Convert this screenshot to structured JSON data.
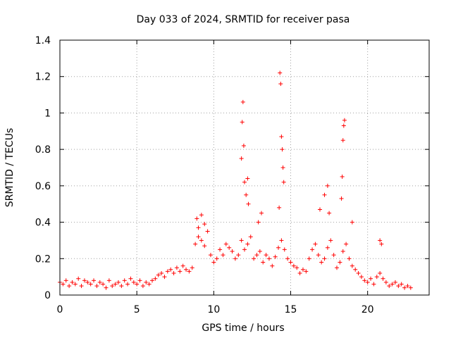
{
  "chart_data": {
    "type": "scatter",
    "title": "Day 033 of 2024, SRMTID for receiver pasa",
    "xlabel": "GPS time / hours",
    "ylabel": "SRMTID / TECUs",
    "xlim": [
      0,
      24
    ],
    "ylim": [
      0,
      1.4
    ],
    "x_ticks": [
      0,
      5,
      10,
      15,
      20
    ],
    "x_tick_labels": [
      "0",
      "5",
      "10",
      "15",
      "20"
    ],
    "y_ticks": [
      0,
      0.2,
      0.4,
      0.6,
      0.8,
      1.0,
      1.2,
      1.4
    ],
    "y_tick_labels": [
      "0",
      "0.2",
      "0.4",
      "0.6",
      "0.8",
      "1",
      "1.2",
      "1.4"
    ],
    "grid": true,
    "marker": "plus",
    "color": "#ff0000",
    "series": [
      {
        "name": "SRMTID",
        "x": [
          0.0,
          0.2,
          0.4,
          0.6,
          0.8,
          1.0,
          1.2,
          1.4,
          1.6,
          1.8,
          2.0,
          2.2,
          2.4,
          2.6,
          2.8,
          3.0,
          3.2,
          3.4,
          3.6,
          3.8,
          4.0,
          4.2,
          4.4,
          4.6,
          4.8,
          5.0,
          5.2,
          5.4,
          5.6,
          5.8,
          6.0,
          6.2,
          6.4,
          6.6,
          6.8,
          7.0,
          7.2,
          7.4,
          7.6,
          7.8,
          8.0,
          8.2,
          8.4,
          8.6,
          8.8,
          9.0,
          9.2,
          9.4,
          9.6,
          9.8,
          10.0,
          10.2,
          10.4,
          10.6,
          10.8,
          11.0,
          11.2,
          11.4,
          11.6,
          11.8,
          12.0,
          12.2,
          12.4,
          12.6,
          12.8,
          13.0,
          13.2,
          13.4,
          13.6,
          13.8,
          14.0,
          14.2,
          14.4,
          14.6,
          14.8,
          15.0,
          15.2,
          15.4,
          15.6,
          15.8,
          16.0,
          16.2,
          16.4,
          16.6,
          16.8,
          17.0,
          17.2,
          17.4,
          17.6,
          17.8,
          18.0,
          18.2,
          18.4,
          18.6,
          18.8,
          19.0,
          19.2,
          19.4,
          19.6,
          19.8,
          20.0,
          20.2,
          20.4,
          20.6,
          20.8,
          21.0,
          21.2,
          21.4,
          21.6,
          21.8,
          22.0,
          22.2,
          22.4,
          22.6,
          22.8,
          11.8,
          11.85,
          11.9,
          11.95,
          12.0,
          12.1,
          12.2,
          12.25,
          14.25,
          14.3,
          14.35,
          14.4,
          14.45,
          14.5,
          14.55,
          16.9,
          17.2,
          17.4,
          17.5,
          18.3,
          18.35,
          18.4,
          18.45,
          18.5,
          8.9,
          9.0,
          9.2,
          9.4,
          12.9,
          13.1,
          19.0,
          20.8,
          20.9
        ],
        "y": [
          0.07,
          0.06,
          0.08,
          0.05,
          0.07,
          0.06,
          0.09,
          0.05,
          0.08,
          0.07,
          0.06,
          0.08,
          0.05,
          0.07,
          0.06,
          0.04,
          0.08,
          0.05,
          0.06,
          0.07,
          0.05,
          0.08,
          0.06,
          0.09,
          0.07,
          0.06,
          0.08,
          0.05,
          0.07,
          0.06,
          0.08,
          0.09,
          0.11,
          0.12,
          0.1,
          0.13,
          0.14,
          0.12,
          0.15,
          0.13,
          0.16,
          0.14,
          0.13,
          0.15,
          0.28,
          0.32,
          0.3,
          0.27,
          0.35,
          0.22,
          0.18,
          0.2,
          0.25,
          0.22,
          0.28,
          0.26,
          0.24,
          0.2,
          0.22,
          0.3,
          0.25,
          0.28,
          0.32,
          0.2,
          0.22,
          0.24,
          0.18,
          0.22,
          0.2,
          0.16,
          0.21,
          0.26,
          0.3,
          0.25,
          0.2,
          0.18,
          0.16,
          0.15,
          0.12,
          0.14,
          0.13,
          0.2,
          0.25,
          0.28,
          0.22,
          0.18,
          0.2,
          0.26,
          0.3,
          0.22,
          0.15,
          0.18,
          0.24,
          0.28,
          0.2,
          0.16,
          0.14,
          0.12,
          0.1,
          0.08,
          0.07,
          0.09,
          0.06,
          0.1,
          0.12,
          0.09,
          0.07,
          0.05,
          0.06,
          0.07,
          0.05,
          0.06,
          0.04,
          0.05,
          0.04,
          0.75,
          0.95,
          1.06,
          0.82,
          0.62,
          0.55,
          0.64,
          0.5,
          0.48,
          1.22,
          1.16,
          0.87,
          0.8,
          0.7,
          0.62,
          0.47,
          0.55,
          0.6,
          0.45,
          0.53,
          0.65,
          0.85,
          0.93,
          0.96,
          0.42,
          0.37,
          0.44,
          0.39,
          0.4,
          0.45,
          0.4,
          0.3,
          0.28
        ]
      }
    ]
  }
}
